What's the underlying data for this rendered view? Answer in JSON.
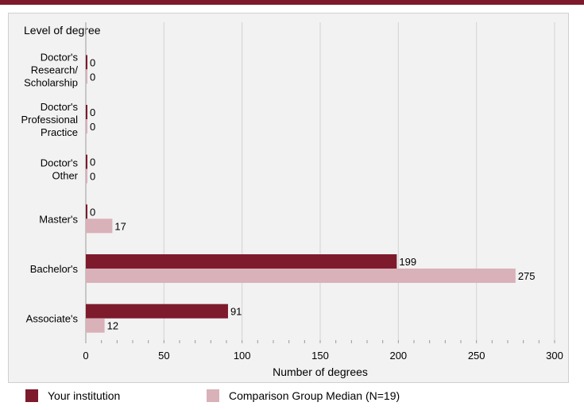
{
  "colors": {
    "primary": "#7d1a2c",
    "comparison": "#d9b1b9",
    "grid": "#d2d2d2"
  },
  "chart_data": {
    "type": "bar",
    "orientation": "horizontal",
    "categories": [
      "Doctor's Research/ Scholarship",
      "Doctor's Professional Practice",
      "Doctor's Other",
      "Master's",
      "Bachelor's",
      "Associate's"
    ],
    "category_lines": [
      [
        "Doctor's",
        "Research/",
        "Scholarship"
      ],
      [
        "Doctor's",
        "Professional",
        "Practice"
      ],
      [
        "Doctor's",
        "Other"
      ],
      [
        "Master's"
      ],
      [
        "Bachelor's"
      ],
      [
        "Associate's"
      ]
    ],
    "series": [
      {
        "name": "Your institution",
        "values": [
          0,
          0,
          0,
          0,
          199,
          91
        ]
      },
      {
        "name": "Comparison Group Median (N=19)",
        "values": [
          0,
          0,
          0,
          17,
          275,
          12
        ]
      }
    ],
    "ylabel": "Level of degree",
    "xlabel": "Number of degrees",
    "xlim": [
      0,
      300
    ],
    "xticks": [
      "0",
      "50",
      "100",
      "150",
      "200",
      "250",
      "300"
    ],
    "grid": true,
    "legend_position": "bottom"
  }
}
